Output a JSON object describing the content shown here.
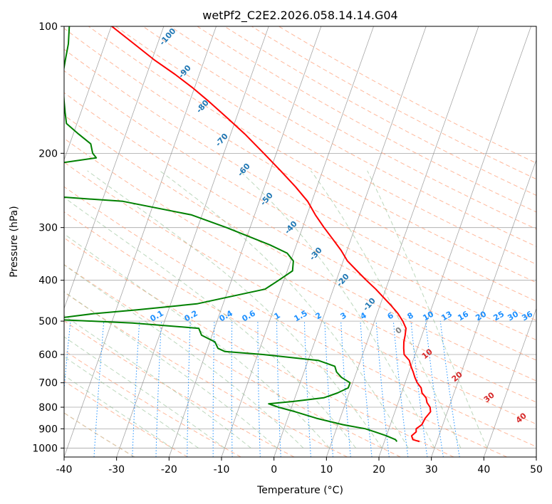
{
  "chart_data": {
    "type": "line",
    "title": "wetPf2_C2E2.2026.058.14.14.G04",
    "xlabel": "Temperature (°C)",
    "ylabel": "Pressure (hPa)",
    "xlim": [
      -40,
      50
    ],
    "ylim": [
      1050,
      100
    ],
    "y_scale": "log",
    "skew": "skew-T log-P",
    "x_ticks": [
      -40,
      -30,
      -20,
      -10,
      0,
      10,
      20,
      30,
      40,
      50
    ],
    "y_ticks": [
      100,
      200,
      300,
      400,
      500,
      600,
      700,
      800,
      900,
      1000
    ],
    "grid": true,
    "series": [
      {
        "color": "#ff0000",
        "p": [
          965,
          955,
          935,
          915,
          900,
          880,
          850,
          820,
          800,
          780,
          760,
          740,
          720,
          700,
          680,
          660,
          640,
          620,
          600,
          580,
          560,
          540,
          520,
          500,
          480,
          460,
          440,
          420,
          400,
          380,
          360,
          340,
          320,
          300,
          280,
          260,
          240,
          220,
          200,
          180,
          165,
          150,
          140,
          130,
          120,
          110,
          100
        ],
        "t": [
          26.7,
          25.3,
          24.8,
          25.4,
          25.2,
          26.0,
          26.2,
          26.8,
          26.4,
          25.5,
          25.0,
          23.9,
          23.4,
          22.3,
          21.5,
          20.8,
          20.0,
          19.3,
          17.9,
          17.4,
          17.0,
          16.8,
          16.5,
          15.4,
          14.0,
          12.2,
          10.2,
          8.1,
          5.7,
          3.3,
          0.8,
          -1.1,
          -3.4,
          -5.9,
          -8.4,
          -10.8,
          -14.1,
          -18.0,
          -22.4,
          -27.3,
          -31.7,
          -36.6,
          -40.3,
          -44.6,
          -49.6,
          -54.5,
          -59.9
        ]
      },
      {
        "color": "#008000",
        "p": [
          965,
          955,
          935,
          915,
          900,
          880,
          850,
          820,
          800,
          785,
          775,
          760,
          740,
          720,
          700,
          680,
          660,
          640,
          620,
          600,
          590,
          580,
          560,
          540,
          520,
          505,
          495,
          480,
          470,
          455,
          440,
          420,
          400,
          380,
          360,
          345,
          330,
          300,
          280,
          260,
          250,
          240,
          235,
          225,
          215,
          205,
          200,
          190,
          180,
          170,
          160,
          150,
          140,
          130,
          120,
          110,
          100
        ],
        "t": [
          22.4,
          22.0,
          20.0,
          17.5,
          15.5,
          11.0,
          5.5,
          1.0,
          -2.5,
          -4.6,
          0.0,
          5.5,
          7.8,
          9.5,
          9.5,
          7.5,
          6.2,
          5.5,
          2.0,
          -9.0,
          -16.5,
          -18.0,
          -19.0,
          -22.0,
          -23.0,
          -36.0,
          -52.0,
          -44.0,
          -36.0,
          -25.0,
          -20.0,
          -13.0,
          -11.0,
          -9.0,
          -9.5,
          -11.2,
          -15.0,
          -24.5,
          -32.0,
          -46.0,
          -66.0,
          -81.0,
          -85.0,
          -82.0,
          -65.0,
          -54.0,
          -55.0,
          -56.0,
          -59.0,
          -62.0,
          -63.0,
          -64.0,
          -65.0,
          -66.0,
          -66.5,
          -67.0,
          -68.0
        ]
      }
    ],
    "dry_adiabat_labels": [
      "-100",
      "-90",
      "-80",
      "-70",
      "-60",
      "-50",
      "-40",
      "-30",
      "-20",
      "-10"
    ],
    "mixing_ratio_labels": [
      "0.1",
      "0.2",
      "0.4",
      "0.6",
      "1",
      "1.5",
      "2",
      "3",
      "4",
      "6",
      "8",
      "10",
      "13",
      "16",
      "20",
      "25",
      "30",
      "36"
    ],
    "moist_adiabat_labels": [
      "0",
      "10",
      "20",
      "30",
      "40"
    ],
    "colors": {
      "temperature": "#ff0000",
      "dewpoint": "#008000",
      "dry_adiabat": "#ffa07a",
      "moist_adiabat": "#8fbc8f",
      "mixing_ratio": "#1e90ff",
      "isotherm": "#808080",
      "dry_label": "#1f77b4",
      "moist_label": "#d62728"
    }
  }
}
